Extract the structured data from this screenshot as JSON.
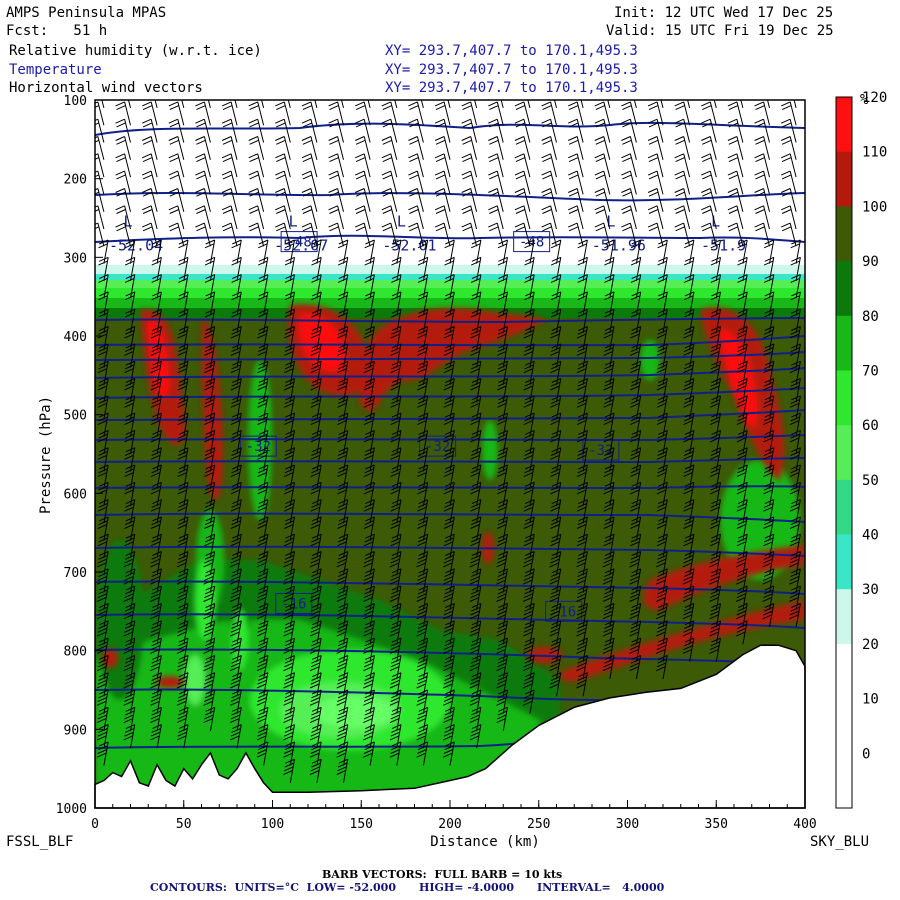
{
  "header": {
    "model": "AMPS Peninsula MPAS",
    "forecast": "Fcst:   51 h",
    "init": "Init: 12 UTC Wed 17 Dec 25",
    "valid": "Valid: 15 UTC Fri 19 Dec 25",
    "fields": [
      {
        "label": "Relative humidity (w.r.t. ice)",
        "xy": "XY= 293.7,407.7 to 170.1,495.3"
      },
      {
        "label": "Temperature",
        "xy": "XY= 293.7,407.7 to 170.1,495.3"
      },
      {
        "label": "Horizontal wind vectors",
        "xy": "XY= 293.7,407.7 to 170.1,495.3"
      }
    ]
  },
  "footer": {
    "left_label": "FSSL_BLF",
    "right_label": "SKY_BLU",
    "barb_note": "BARB VECTORS:  FULL BARB = 10 kts",
    "contours_note": "CONTOURS:  UNITS=°C  LOW= -52.000      HIGH= -4.0000      INTERVAL=   4.0000"
  },
  "colors": {
    "temp_contour": "#10208a",
    "terrain": "#ffffff",
    "scale": [
      "#ffffff",
      "#ffffff",
      "#ffffff",
      "#cdf7ea",
      "#3ae6c8",
      "#33d987",
      "#55ee55",
      "#2ee82e",
      "#17b817",
      "#0b7a0b",
      "#3d5a06",
      "#b31a0a",
      "#ff1010"
    ]
  },
  "chart_data": {
    "type": "heatmap",
    "title": "",
    "xlabel": "Distance (km)",
    "ylabel": "Pressure (hPa)",
    "xlim": [
      0,
      400
    ],
    "ylim": [
      1000,
      100
    ],
    "x_ticks": [
      0,
      50,
      100,
      150,
      200,
      250,
      300,
      350,
      400
    ],
    "y_ticks": [
      100,
      200,
      300,
      400,
      500,
      600,
      700,
      800,
      900,
      1000
    ],
    "colorbar": {
      "unit": "%",
      "levels": [
        0,
        10,
        20,
        30,
        40,
        50,
        60,
        70,
        80,
        90,
        100,
        110,
        120
      ]
    },
    "temperature_contours": {
      "units": "°C",
      "low": -52,
      "high": -4,
      "interval": 4,
      "labels": [
        {
          "value": "-48",
          "x": 115,
          "p": 280
        },
        {
          "value": "-48",
          "x": 246,
          "p": 280
        },
        {
          "value": "-32",
          "x": 92,
          "p": 540
        },
        {
          "value": "-32",
          "x": 193,
          "p": 540
        },
        {
          "value": "-32",
          "x": 285,
          "p": 545
        },
        {
          "value": "-16",
          "x": 112,
          "p": 740
        },
        {
          "value": "-16",
          "x": 264,
          "p": 750
        }
      ],
      "lows": [
        {
          "label": "L",
          "value": "-52.04",
          "x": 13,
          "p": 322
        },
        {
          "label": "L",
          "value": "-52.07",
          "x": 106,
          "p": 322
        },
        {
          "label": "L",
          "value": "-52.01",
          "x": 167,
          "p": 322
        },
        {
          "label": "L",
          "value": "-51.96",
          "x": 285,
          "p": 322
        },
        {
          "label": "L",
          "value": "-51.9",
          "x": 344,
          "p": 322
        }
      ]
    },
    "terrain_profile": {
      "x": [
        0,
        5,
        10,
        15,
        20,
        25,
        30,
        35,
        40,
        45,
        50,
        55,
        60,
        65,
        70,
        75,
        80,
        85,
        90,
        95,
        100,
        120,
        150,
        180,
        200,
        210,
        215,
        220,
        225,
        235,
        250,
        270,
        290,
        310,
        330,
        350,
        365,
        375,
        385,
        395,
        400
      ],
      "p": [
        970,
        965,
        955,
        960,
        940,
        968,
        972,
        945,
        965,
        972,
        950,
        963,
        945,
        930,
        958,
        963,
        950,
        930,
        950,
        968,
        980,
        980,
        978,
        975,
        965,
        960,
        955,
        950,
        940,
        920,
        895,
        872,
        860,
        853,
        848,
        830,
        805,
        793,
        793,
        800,
        820
      ]
    }
  }
}
